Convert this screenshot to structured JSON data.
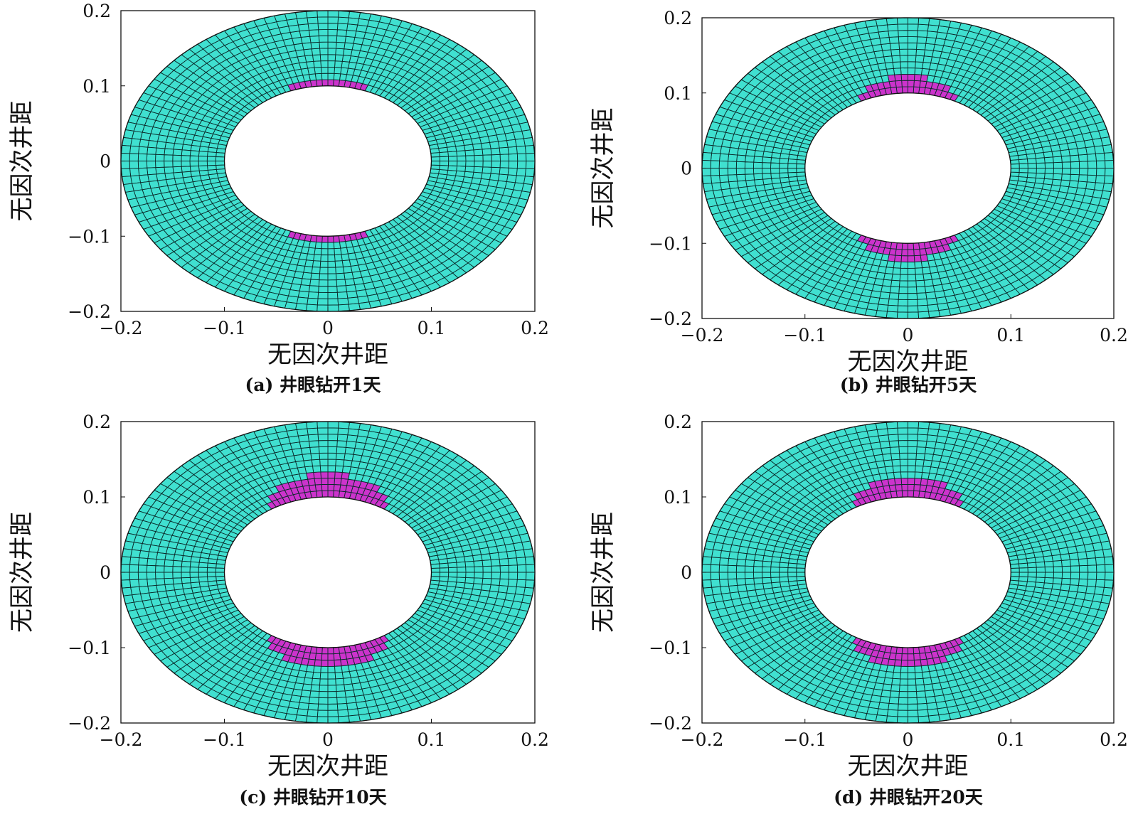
{
  "chart_data": [
    {
      "type": "mesh",
      "panel": "a",
      "caption": "(a) 井眼钻开1天",
      "xlabel": "无因次井距",
      "ylabel": "无因次井距",
      "xlim": [
        -0.2,
        0.2
      ],
      "ylim": [
        -0.2,
        0.2
      ],
      "xticks": [
        "−0.2",
        "−0.1",
        "0",
        "0.1",
        "0.2"
      ],
      "yticks": [
        "0.2",
        "0.1",
        "0",
        "−0.1",
        "−0.2"
      ],
      "ring": {
        "inner_radius": 0.1,
        "outer_radius": 0.2
      },
      "colors": {
        "mesh": "#40e0d0",
        "failure": "#cc33cc",
        "grid": "#0a2a2a"
      },
      "failure_zones": [
        {
          "center_deg": 90,
          "half_width_deg": 23,
          "depth": 0.01
        },
        {
          "center_deg": 270,
          "half_width_deg": 23,
          "depth": 0.012
        }
      ]
    },
    {
      "type": "mesh",
      "panel": "b",
      "caption": "(b) 井眼钻开5天",
      "xlabel": "无因次井距",
      "ylabel": "无因次井距",
      "xlim": [
        -0.2,
        0.2
      ],
      "ylim": [
        -0.2,
        0.2
      ],
      "xticks": [
        "−0.2",
        "−0.1",
        "0",
        "0.1",
        "0.2"
      ],
      "yticks": [
        "0.2",
        "0.1",
        "0",
        "−0.1",
        "−0.2"
      ],
      "ring": {
        "inner_radius": 0.1,
        "outer_radius": 0.2
      },
      "colors": {
        "mesh": "#40e0d0",
        "failure": "#cc33cc",
        "grid": "#0a2a2a"
      },
      "failure_zones": [
        {
          "center_deg": 90,
          "half_width_deg": 26,
          "depth": 0.022
        },
        {
          "center_deg": 270,
          "half_width_deg": 26,
          "depth": 0.022
        }
      ]
    },
    {
      "type": "mesh",
      "panel": "c",
      "caption": "(c) 井眼钻开10天",
      "xlabel": "无因次井距",
      "ylabel": "无因次井距",
      "xlim": [
        -0.2,
        0.2
      ],
      "ylim": [
        -0.2,
        0.2
      ],
      "xticks": [
        "−0.2",
        "−0.1",
        "0",
        "0.1",
        "0.2"
      ],
      "yticks": [
        "0.2",
        "0.1",
        "0",
        "−0.1",
        "−0.2"
      ],
      "ring": {
        "inner_radius": 0.1,
        "outer_radius": 0.2
      },
      "colors": {
        "mesh": "#40e0d0",
        "failure": "#cc33cc",
        "grid": "#0a2a2a"
      },
      "failure_zones": [
        {
          "center_deg": 90,
          "half_width_deg": 34,
          "depth": 0.03
        },
        {
          "center_deg": 270,
          "half_width_deg": 33,
          "depth": 0.028
        }
      ]
    },
    {
      "type": "mesh",
      "panel": "d",
      "caption": "(d) 井眼钻开20天",
      "xlabel": "无因次井距",
      "ylabel": "无因次井距",
      "xlim": [
        -0.2,
        0.2
      ],
      "ylim": [
        -0.2,
        0.2
      ],
      "xticks": [
        "−0.2",
        "−0.1",
        "0",
        "0.1",
        "0.2"
      ],
      "yticks": [
        "0.2",
        "0.1",
        "0",
        "−0.1",
        "−0.2"
      ],
      "ring": {
        "inner_radius": 0.1,
        "outer_radius": 0.2
      },
      "colors": {
        "mesh": "#40e0d0",
        "failure": "#cc33cc",
        "grid": "#0a2a2a"
      },
      "failure_zones": [
        {
          "center_deg": 90,
          "half_width_deg": 31,
          "depth": 0.025
        },
        {
          "center_deg": 270,
          "half_width_deg": 30,
          "depth": 0.025
        }
      ]
    }
  ]
}
